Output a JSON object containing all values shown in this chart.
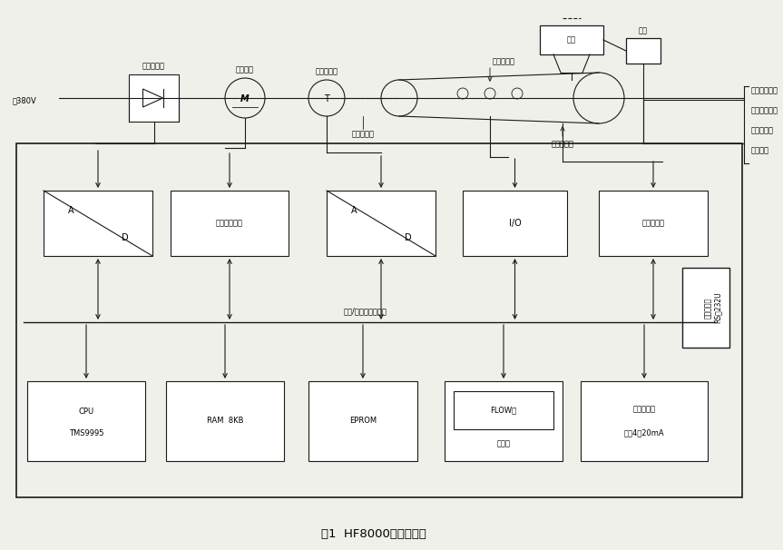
{
  "title": "图1  HF8000硬件构成图",
  "bg_color": "#f0f0eb",
  "right_labels": [
    "皮带运转信号",
    "皮带限位开关",
    "总报警信号",
    "联锁信号"
  ],
  "middle_bus_label": "数据/地址总线＋电源",
  "fig_w": 8.63,
  "fig_h": 6.06,
  "dpi": 100
}
